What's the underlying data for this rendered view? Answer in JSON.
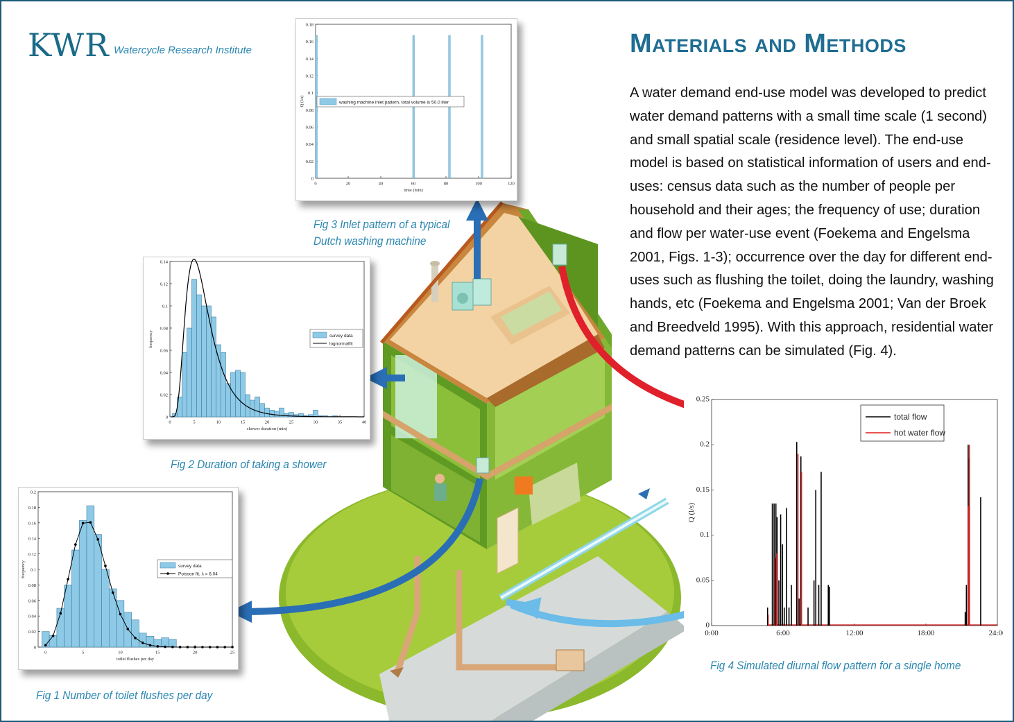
{
  "logo": {
    "text": "KWR",
    "tagline": "Watercycle Research Institute"
  },
  "heading": "Materials and Methods",
  "body_text": "A water demand end-use model was developed to predict water demand patterns with a small time scale (1 second) and small spatial scale (residence level). The end-use model is based on statistical information of users and end-uses: census data such as the number of people per household and their ages; the frequency of use; duration and flow per water-use event (Foekema and Engelsma 2001, Figs. 1-3); occurrence over the day for different end-uses such as flushing the toilet, doing the laundry, washing hands, etc (Foekema and Engelsma 2001; Van der Broek and Breedveld 1995). With this approach, residential water demand patterns can be simulated (Fig. 4).",
  "captions": {
    "fig1": "Fig 1  Number of toilet flushes per day",
    "fig2": "Fig 2  Duration of taking a shower",
    "fig3_line1": "Fig 3  Inlet pattern of a typical",
    "fig3_line2": "Dutch washing machine",
    "fig4": "Fig 4  Simulated diurnal flow pattern for a single home"
  },
  "colors": {
    "accent": "#1f6d92",
    "caption": "#2a86b0",
    "bar": "#8ecae6",
    "arrow_dark": "#2a6eb5",
    "arrow_light": "#6bbce8",
    "arrow_red": "#e0202a"
  },
  "chart_data": [
    {
      "id": "fig3",
      "type": "bar",
      "xlabel": "time (min)",
      "ylabel": "Q (l/s)",
      "xlim": [
        0,
        120
      ],
      "ylim": [
        0,
        0.18
      ],
      "xticks": [
        "0",
        "20",
        "40",
        "60",
        "80",
        "100",
        "120"
      ],
      "yticks": [
        "0",
        "0.02",
        "0.04",
        "0.06",
        "0.08",
        "0.1",
        "0.12",
        "0.14",
        "0.16",
        "0.18"
      ],
      "legend": "washing machine inlet pattern, total volume is 50.0 liter",
      "x": [
        0,
        60,
        82,
        102
      ],
      "values": [
        0.167,
        0.167,
        0.167,
        0.167
      ]
    },
    {
      "id": "fig2",
      "type": "bar",
      "xlabel": "shower duration (min)",
      "ylabel": "frequency",
      "xlim": [
        0,
        40
      ],
      "ylim": [
        0,
        0.14
      ],
      "xticks": [
        "0",
        "5",
        "10",
        "15",
        "20",
        "25",
        "30",
        "35",
        "40"
      ],
      "yticks": [
        "0",
        "0.02",
        "0.04",
        "0.06",
        "0.08",
        "0.1",
        "0.12",
        "0.14"
      ],
      "legend": [
        "survey data",
        "lognormalfit"
      ],
      "bin_width": 1,
      "x": [
        1,
        2,
        3,
        4,
        5,
        6,
        7,
        8,
        9,
        10,
        11,
        12,
        13,
        14,
        15,
        16,
        17,
        18,
        19,
        20,
        21,
        22,
        23,
        24,
        25,
        26,
        27,
        28,
        29,
        30,
        31,
        32,
        33,
        34,
        35,
        36,
        37,
        38,
        39
      ],
      "values": [
        0.003,
        0.018,
        0.058,
        0.08,
        0.124,
        0.11,
        0.1,
        0.1,
        0.09,
        0.065,
        0.058,
        0.03,
        0.04,
        0.042,
        0.04,
        0.02,
        0.015,
        0.018,
        0.012,
        0.008,
        0.006,
        0.005,
        0.008,
        0.003,
        0.004,
        0.002,
        0.003,
        0.001,
        0.002,
        0.006,
        0.001,
        0.001,
        0,
        0.001,
        0,
        0,
        0,
        0,
        0
      ],
      "fit": {
        "name": "lognormalfit",
        "mu": 1.85,
        "sigma": 0.5
      }
    },
    {
      "id": "fig1",
      "type": "bar",
      "xlabel": "toilet flushes per day",
      "ylabel": "frequency",
      "xlim": [
        -1,
        25
      ],
      "ylim": [
        0,
        0.2
      ],
      "xticks": [
        "0",
        "5",
        "10",
        "15",
        "20",
        "25"
      ],
      "yticks": [
        "0",
        "0.02",
        "0.04",
        "0.06",
        "0.08",
        "0.1",
        "0.12",
        "0.14",
        "0.16",
        "0.18",
        "0.2"
      ],
      "legend": [
        "survey data",
        "Poisson fit, λ = 6.04"
      ],
      "x": [
        0,
        1,
        2,
        3,
        4,
        5,
        6,
        7,
        8,
        9,
        10,
        11,
        12,
        13,
        14,
        15,
        16,
        17
      ],
      "values": [
        0.02,
        0.015,
        0.05,
        0.08,
        0.125,
        0.163,
        0.182,
        0.145,
        0.1,
        0.075,
        0.06,
        0.045,
        0.035,
        0.018,
        0.014,
        0.01,
        0.012,
        0.01
      ],
      "fit": {
        "name": "Poisson fit, λ = 6.04",
        "lambda": 6.04,
        "k_max": 25
      }
    },
    {
      "id": "fig4",
      "type": "bar",
      "xlabel": "",
      "ylabel": "Q (l/s)",
      "ylim": [
        0,
        0.25
      ],
      "xticks": [
        "0:00",
        "6:00",
        "12:00",
        "18:00",
        "24:00"
      ],
      "yticks": [
        "0",
        "0.05",
        "0.1",
        "0.15",
        "0.2",
        "0.25"
      ],
      "legend": [
        "total flow",
        "hot water flow"
      ],
      "series": [
        {
          "name": "total flow",
          "x_hours": [
            4.7,
            5.1,
            5.25,
            5.4,
            5.5,
            5.65,
            5.8,
            5.95,
            6.1,
            6.3,
            6.5,
            6.7,
            7.15,
            7.35,
            7.5,
            8.1,
            8.6,
            8.75,
            9.0,
            9.2,
            9.8,
            9.9,
            21.3,
            21.4,
            21.55,
            21.65,
            22.6
          ],
          "values": [
            0.02,
            0.135,
            0.135,
            0.135,
            0.12,
            0.05,
            0.123,
            0.09,
            0.02,
            0.13,
            0.02,
            0.045,
            0.203,
            0.03,
            0.187,
            0.02,
            0.05,
            0.15,
            0.045,
            0.17,
            0.045,
            0.043,
            0.015,
            0.045,
            0.2,
            0.185,
            0.142
          ]
        },
        {
          "name": "hot water flow",
          "x_hours": [
            4.7,
            5.25,
            5.4,
            7.2,
            7.5,
            21.5,
            21.6
          ],
          "values": [
            0.012,
            0.075,
            0.08,
            0.19,
            0.17,
            0.132,
            0.2
          ]
        }
      ]
    }
  ]
}
